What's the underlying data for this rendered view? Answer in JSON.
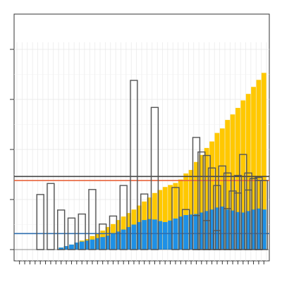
{
  "chart_data": {
    "type": "bar",
    "title": "",
    "xlabel": "",
    "ylabel": "",
    "ylim": [
      0,
      4
    ],
    "grid": true,
    "n_categories": 48,
    "colors": {
      "stacked_top": "#FFC800",
      "stacked_bottom": "#1E90E6",
      "outline_bar": "#555555",
      "hline_red": "#E8643C",
      "hline_blue": "#2F6FB0",
      "hline_dark": "#444444"
    },
    "series": [
      {
        "type": "stacked_area_bar",
        "values_top": [
          0,
          0,
          0,
          0,
          0,
          0,
          0,
          0,
          0.04,
          0.07,
          0.1,
          0.14,
          0.18,
          0.21,
          0.27,
          0.33,
          0.38,
          0.45,
          0.51,
          0.59,
          0.66,
          0.73,
          0.8,
          0.88,
          0.96,
          1.04,
          1.13,
          1.19,
          1.25,
          1.29,
          1.33,
          1.4,
          1.52,
          1.59,
          1.75,
          1.89,
          2.03,
          2.16,
          2.33,
          2.42,
          2.59,
          2.7,
          2.83,
          2.98,
          3.11,
          3.25,
          3.39,
          3.53
        ]
      },
      {
        "type": "stacked_bottom",
        "values_bottom": [
          0,
          0,
          0,
          0,
          0,
          0,
          0,
          0,
          0.04,
          0.07,
          0.1,
          0.14,
          0.16,
          0.18,
          0.2,
          0.23,
          0.25,
          0.28,
          0.31,
          0.36,
          0.4,
          0.45,
          0.5,
          0.55,
          0.59,
          0.61,
          0.6,
          0.57,
          0.55,
          0.58,
          0.62,
          0.66,
          0.69,
          0.7,
          0.71,
          0.74,
          0.77,
          0.8,
          0.84,
          0.86,
          0.8,
          0.78,
          0.75,
          0.74,
          0.77,
          0.8,
          0.82,
          0.8
        ]
      },
      {
        "type": "outline",
        "values": [
          0,
          0,
          0,
          0,
          1.1,
          0,
          1.32,
          0,
          0.79,
          0,
          0.63,
          0,
          0.71,
          0,
          1.2,
          0,
          0.51,
          0,
          0.67,
          0,
          1.28,
          0,
          3.38,
          0,
          1.11,
          0,
          2.84,
          0,
          0,
          0,
          1.24,
          0,
          0.8,
          0,
          0.68,
          0,
          0.58,
          0,
          1.28,
          0,
          0.82,
          0,
          1.48,
          0,
          1.19,
          0,
          1.44,
          0
        ]
      }
    ],
    "outline_second_group": [
      0,
      0,
      0,
      0,
      0,
      0,
      0,
      0,
      0,
      0,
      0,
      0,
      0,
      0,
      0,
      0,
      0,
      0,
      0,
      0,
      0,
      0,
      0,
      0,
      0,
      0,
      0,
      0,
      0,
      0,
      0,
      0,
      0,
      0,
      2.24,
      1.95,
      1.88,
      1.63,
      0.38,
      1.67,
      1.53,
      1.17,
      1.13,
      1.9,
      1.53,
      1.42,
      1.38,
      1.38
    ],
    "hlines": [
      {
        "name": "",
        "value": 1.38,
        "color": "#E8643C"
      },
      {
        "name": "",
        "value": 1.46,
        "color": "#444444"
      },
      {
        "name": "",
        "value": 0.32,
        "color": "#2F6FB0"
      }
    ],
    "tick_labels_x": [],
    "tick_labels_y": []
  }
}
